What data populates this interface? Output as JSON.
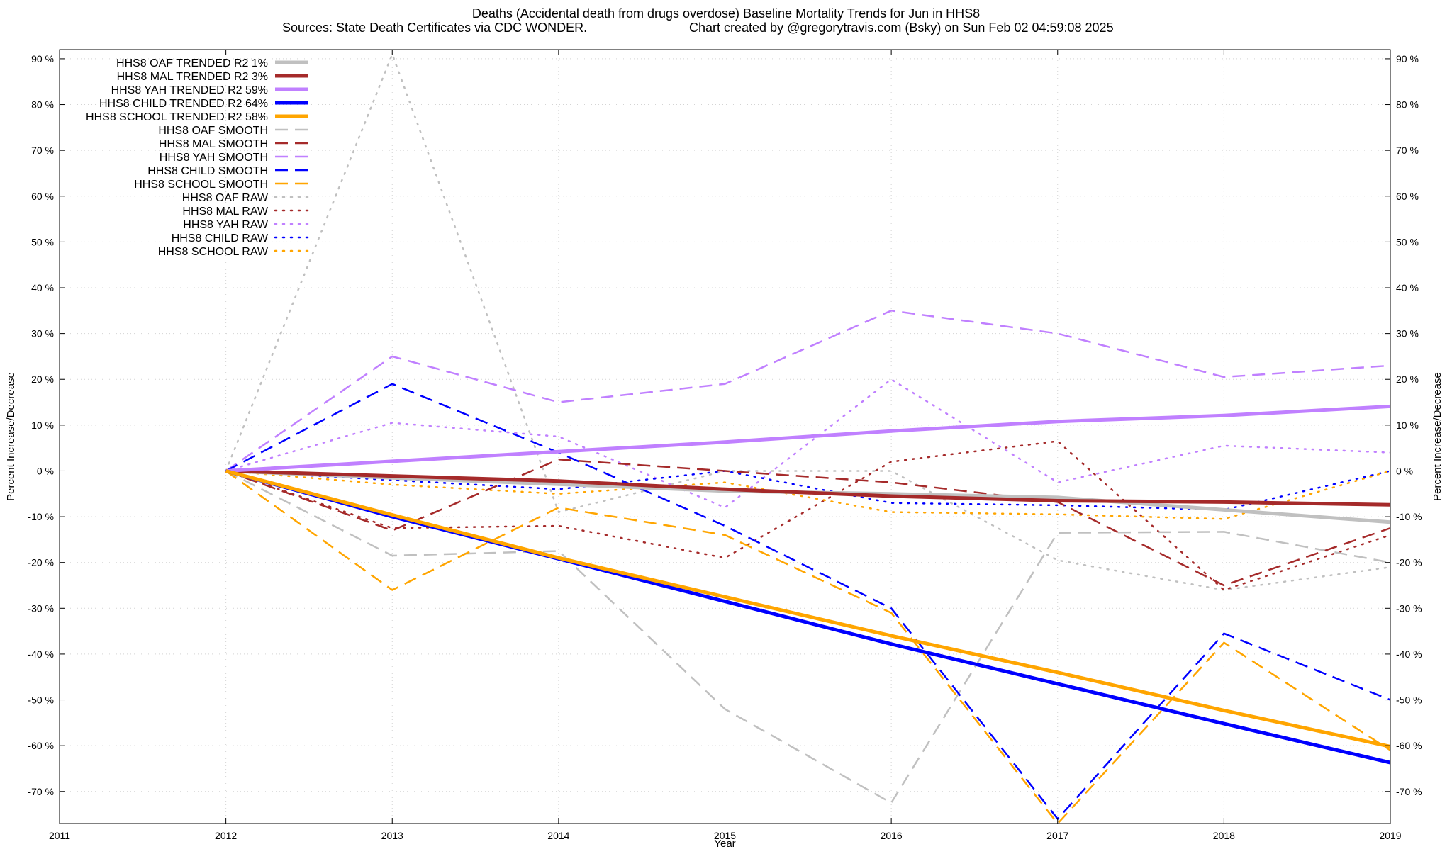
{
  "title_line1": "Deaths (Accidental death from drugs overdose)  Baseline Mortality Trends for Jun in HHS8",
  "title_line2_left": "Sources: State Death Certificates via CDC WONDER.",
  "title_line2_right": "Chart created by @gregorytravis.com (Bsky) on Sun Feb 02 04:59:08 2025",
  "chart_data": {
    "type": "line",
    "xlabel": "Year",
    "ylabel": "Percent Increase/Decrease",
    "y2label": "Percent Increase/Decrease",
    "xlim": [
      2011,
      2019
    ],
    "ylim": [
      -77,
      92
    ],
    "x_ticks": [
      2011,
      2012,
      2013,
      2014,
      2015,
      2016,
      2017,
      2018,
      2019
    ],
    "y_ticks": [
      90,
      80,
      70,
      60,
      50,
      40,
      30,
      20,
      10,
      0,
      -10,
      -20,
      -30,
      -40,
      -50,
      -60,
      -70
    ],
    "y_tick_labels": [
      "90 %",
      "80 %",
      "70 %",
      "60 %",
      "50 %",
      "40 %",
      "30 %",
      "20 %",
      "10 %",
      "0 %",
      "-10 %",
      "-20 %",
      "-30 %",
      "-40 %",
      "-50 %",
      "-60 %",
      "-70 %"
    ],
    "grid": true,
    "legend_position": "top-left",
    "x": [
      2012,
      2013,
      2014,
      2015,
      2016,
      2017,
      2018,
      2019
    ],
    "series": [
      {
        "name": "HHS8 OAF TRENDED R2  1%",
        "style": "solid",
        "color": "#c0c0c0",
        "values": [
          0,
          -1.5,
          -2.9,
          -4.4,
          -5.0,
          -5.8,
          -8.5,
          -11.2
        ]
      },
      {
        "name": "HHS8 MAL TRENDED R2  3%",
        "style": "solid",
        "color": "#a52a2a",
        "values": [
          0,
          -1.1,
          -2.2,
          -4.0,
          -5.5,
          -6.5,
          -6.8,
          -7.4
        ]
      },
      {
        "name": "HHS8 YAH TRENDED R2  59%",
        "style": "solid",
        "color": "#c080ff",
        "values": [
          0,
          2.1,
          4.2,
          6.3,
          8.7,
          10.8,
          12.1,
          14.1
        ]
      },
      {
        "name": "HHS8 CHILD TRENDED R2  64%",
        "style": "solid",
        "color": "#0000ff",
        "values": [
          0,
          -10.0,
          -19.2,
          -28.5,
          -37.8,
          -46.5,
          -55.2,
          -63.7
        ]
      },
      {
        "name": "HHS8 SCHOOL TRENDED R2  58%",
        "style": "solid",
        "color": "#ffa500",
        "values": [
          0,
          -9.6,
          -19.0,
          -27.5,
          -36.0,
          -44.0,
          -52.3,
          -60.2
        ]
      },
      {
        "name": "HHS8 OAF SMOOTH",
        "style": "dashed",
        "color": "#c0c0c0",
        "values": [
          0,
          -18.5,
          -17.5,
          -52.0,
          -72.5,
          -13.5,
          -13.3,
          -20.0
        ]
      },
      {
        "name": "HHS8 MAL SMOOTH",
        "style": "dashed",
        "color": "#a52a2a",
        "values": [
          0,
          -13.0,
          2.5,
          0,
          -2.5,
          -6.8,
          -25.0,
          -12.5
        ]
      },
      {
        "name": "HHS8 YAH SMOOTH",
        "style": "dashed",
        "color": "#c080ff",
        "values": [
          0,
          25.0,
          15.0,
          19.0,
          35.0,
          30.0,
          20.5,
          23.0
        ]
      },
      {
        "name": "HHS8 CHILD SMOOTH",
        "style": "dashed",
        "color": "#0000ff",
        "values": [
          0,
          19.0,
          4.0,
          -12.0,
          -30.0,
          -76.0,
          -35.5,
          -50.0
        ]
      },
      {
        "name": "HHS8 SCHOOL SMOOTH",
        "style": "dashed",
        "color": "#ffa500",
        "values": [
          0,
          -26.0,
          -8.0,
          -14.0,
          -31.0,
          -77.0,
          -37.5,
          -61.0
        ]
      },
      {
        "name": "HHS8 OAF RAW",
        "style": "dotted",
        "color": "#c0c0c0",
        "values": [
          0,
          91.0,
          -9.0,
          0,
          0,
          -19.5,
          -26.0,
          -21.0
        ]
      },
      {
        "name": "HHS8 MAL RAW",
        "style": "dotted",
        "color": "#a52a2a",
        "values": [
          0,
          -12.5,
          -12.0,
          -19.0,
          2.0,
          6.5,
          -26.0,
          -14.0
        ]
      },
      {
        "name": "HHS8 YAH RAW",
        "style": "dotted",
        "color": "#c080ff",
        "values": [
          0,
          10.5,
          7.5,
          -8.0,
          20.0,
          -2.5,
          5.5,
          4.0
        ]
      },
      {
        "name": "HHS8 CHILD RAW",
        "style": "dotted",
        "color": "#0000ff",
        "values": [
          0,
          -2.0,
          -4.0,
          0,
          -7.0,
          -7.5,
          -8.5,
          0
        ]
      },
      {
        "name": "HHS8 SCHOOL RAW",
        "style": "dotted",
        "color": "#ffa500",
        "values": [
          0,
          -3.0,
          -5.0,
          -2.5,
          -9.0,
          -9.5,
          -10.5,
          0
        ]
      }
    ]
  }
}
